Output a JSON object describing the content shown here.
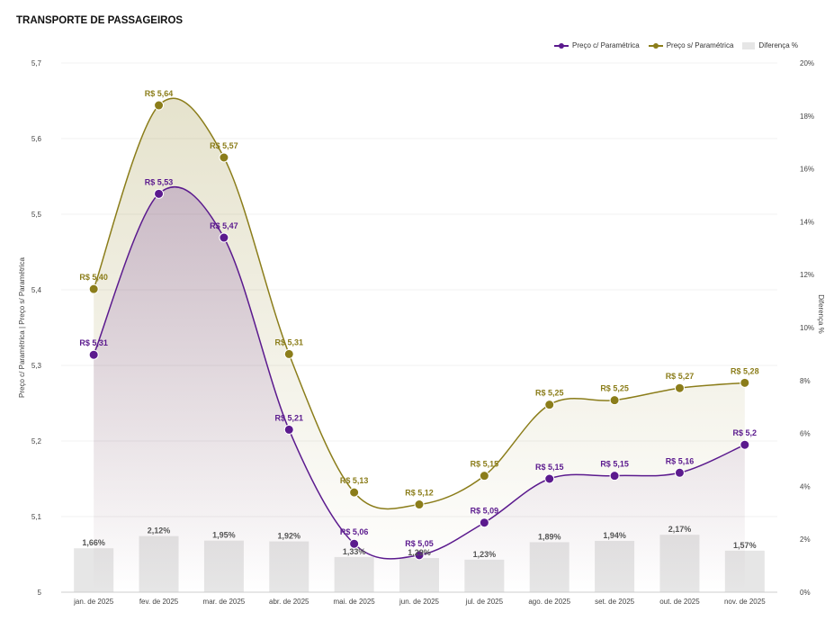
{
  "title": "TRANSPORTE DE PASSAGEIROS",
  "colors": {
    "com": "#5b1a8e",
    "sem": "#8b7d1a",
    "bar": "#e6e6e6"
  },
  "legend": {
    "com": "Preço c/ Paramétrica",
    "sem": "Preço s/ Paramétrica",
    "diff": "Diferença %"
  },
  "chart_data": {
    "type": "line+bar",
    "title": "TRANSPORTE DE PASSAGEIROS",
    "categories": [
      "jan. de 2025",
      "fev. de 2025",
      "mar. de 2025",
      "abr. de 2025",
      "mai. de 2025",
      "jun. de 2025",
      "jul. de 2025",
      "ago. de 2025",
      "set. de 2025",
      "out. de 2025",
      "nov. de 2025"
    ],
    "series": [
      {
        "name": "Preço c/ Paramétrica",
        "axis": "left",
        "values": [
          5.314,
          5.527,
          5.469,
          5.215,
          5.064,
          5.049,
          5.092,
          5.15,
          5.154,
          5.158,
          5.195
        ],
        "labels": [
          "R$ 5,31",
          "R$ 5,53",
          "R$ 5,47",
          "R$ 5,21",
          "R$ 5,06",
          "R$ 5,05",
          "R$ 5,09",
          "R$ 5,15",
          "R$ 5,15",
          "R$ 5,16",
          "R$ 5,2"
        ]
      },
      {
        "name": "Preço s/ Paramétrica",
        "axis": "left",
        "values": [
          5.401,
          5.644,
          5.575,
          5.315,
          5.132,
          5.116,
          5.154,
          5.248,
          5.254,
          5.27,
          5.277
        ],
        "labels": [
          "R$ 5,40",
          "R$ 5,64",
          "R$ 5,57",
          "R$ 5,31",
          "R$ 5,13",
          "R$ 5,12",
          "R$ 5,15",
          "R$ 5,25",
          "R$ 5,25",
          "R$ 5,27",
          "R$ 5,28"
        ]
      },
      {
        "name": "Diferença %",
        "axis": "right",
        "type": "bar",
        "values": [
          1.66,
          2.12,
          1.95,
          1.92,
          1.33,
          1.29,
          1.23,
          1.89,
          1.94,
          2.17,
          1.57
        ],
        "labels": [
          "1,66%",
          "2,12%",
          "1,95%",
          "1,92%",
          "1,33%",
          "1,29%",
          "1,23%",
          "1,89%",
          "1,94%",
          "2,17%",
          "1,57%"
        ]
      }
    ],
    "y_left": {
      "label": "Preço c/ Paramétrica | Preço s/ Paramétrica",
      "min": 5.0,
      "max": 5.7,
      "ticks": [
        "5",
        "5,1",
        "5,2",
        "5,3",
        "5,4",
        "5,5",
        "5,6",
        "5,7"
      ]
    },
    "y_right": {
      "label": "Diferença %",
      "min": 0,
      "max": 20,
      "ticks": [
        "0%",
        "2%",
        "4%",
        "6%",
        "8%",
        "10%",
        "12%",
        "14%",
        "16%",
        "18%",
        "20%"
      ]
    },
    "legend_position": "top-right"
  }
}
